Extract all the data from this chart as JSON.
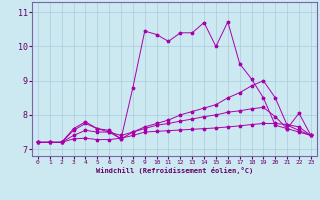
{
  "xlabel": "Windchill (Refroidissement éolien,°C)",
  "bg_color": "#cce8f0",
  "line_color": "#aa00aa",
  "grid_color": "#aaccdd",
  "axis_color": "#7766aa",
  "text_color": "#660066",
  "xlim": [
    -0.5,
    23.5
  ],
  "ylim": [
    6.8,
    11.3
  ],
  "xticks": [
    0,
    1,
    2,
    3,
    4,
    5,
    6,
    7,
    8,
    9,
    10,
    11,
    12,
    13,
    14,
    15,
    16,
    17,
    18,
    19,
    20,
    21,
    22,
    23
  ],
  "yticks": [
    7,
    8,
    9,
    10,
    11
  ],
  "line1_y": [
    7.2,
    7.2,
    7.2,
    7.6,
    7.8,
    7.6,
    7.5,
    7.3,
    8.8,
    10.45,
    10.35,
    10.15,
    10.4,
    10.4,
    10.7,
    10.0,
    10.72,
    9.5,
    9.05,
    8.5,
    7.7,
    7.6,
    8.05,
    7.4
  ],
  "line2_y": [
    7.2,
    7.2,
    7.2,
    7.55,
    7.75,
    7.6,
    7.55,
    7.3,
    7.5,
    7.65,
    7.75,
    7.85,
    8.0,
    8.1,
    8.2,
    8.3,
    8.5,
    8.65,
    8.85,
    9.0,
    8.5,
    7.7,
    7.55,
    7.4
  ],
  "line3_y": [
    7.2,
    7.2,
    7.2,
    7.4,
    7.55,
    7.5,
    7.5,
    7.4,
    7.5,
    7.6,
    7.7,
    7.75,
    7.82,
    7.88,
    7.95,
    8.0,
    8.08,
    8.12,
    8.18,
    8.22,
    7.95,
    7.6,
    7.5,
    7.4
  ],
  "line4_y": [
    7.2,
    7.2,
    7.2,
    7.3,
    7.32,
    7.28,
    7.28,
    7.32,
    7.4,
    7.5,
    7.52,
    7.54,
    7.56,
    7.58,
    7.6,
    7.62,
    7.65,
    7.68,
    7.72,
    7.75,
    7.75,
    7.72,
    7.65,
    7.4
  ]
}
